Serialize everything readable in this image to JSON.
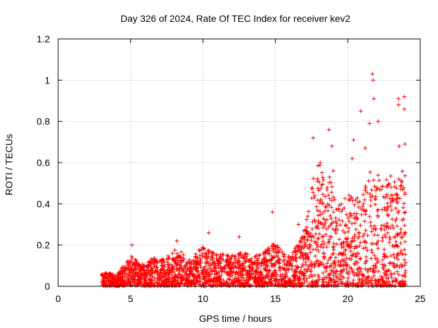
{
  "chart_data": {
    "type": "scatter",
    "title": "Day 326 of 2024, Rate Of TEC Index for receiver kev2",
    "xlabel": "GPS time / hours",
    "ylabel": "ROTI / TECUs",
    "xlim": [
      0,
      25
    ],
    "ylim": [
      0,
      1.2
    ],
    "x_ticks": [
      "0",
      "5",
      "10",
      "15",
      "20",
      "25"
    ],
    "y_ticks": [
      "0",
      "0.2",
      "0.4",
      "0.6",
      "0.8",
      "1",
      "1.2"
    ],
    "x_tick_values": [
      0,
      5,
      10,
      15,
      20,
      25
    ],
    "y_tick_values": [
      0,
      0.2,
      0.4,
      0.6,
      0.8,
      1.0,
      1.2
    ],
    "grid": true,
    "marker": "+",
    "marker_color": "#ff0000",
    "x_range_of_data": [
      3.0,
      24.0
    ],
    "envelope_hours": [
      3,
      3.5,
      4,
      4.5,
      5,
      5.5,
      6,
      6.5,
      7,
      7.5,
      8,
      8.5,
      9,
      9.5,
      10,
      10.5,
      11,
      11.5,
      12,
      12.5,
      13,
      13.5,
      14,
      14.5,
      15,
      15.5,
      16,
      16.5,
      17,
      17.5,
      18,
      18.5,
      19,
      19.5,
      20,
      20.5,
      21,
      21.5,
      22,
      22.5,
      23,
      23.5,
      24
    ],
    "envelope_roti": [
      0.06,
      0.07,
      0.05,
      0.1,
      0.16,
      0.12,
      0.1,
      0.14,
      0.13,
      0.15,
      0.18,
      0.17,
      0.13,
      0.16,
      0.2,
      0.17,
      0.15,
      0.16,
      0.15,
      0.17,
      0.16,
      0.14,
      0.17,
      0.19,
      0.22,
      0.17,
      0.15,
      0.2,
      0.28,
      0.5,
      0.62,
      0.56,
      0.5,
      0.4,
      0.45,
      0.42,
      0.5,
      0.55,
      0.6,
      0.5,
      0.55,
      0.6,
      0.55
    ],
    "highlight_points": [
      {
        "x": 5.1,
        "y": 0.2
      },
      {
        "x": 8.2,
        "y": 0.22
      },
      {
        "x": 10.4,
        "y": 0.26
      },
      {
        "x": 12.5,
        "y": 0.24
      },
      {
        "x": 14.8,
        "y": 0.36
      },
      {
        "x": 16.6,
        "y": 0.3
      },
      {
        "x": 17.6,
        "y": 0.72
      },
      {
        "x": 18.1,
        "y": 0.6
      },
      {
        "x": 18.7,
        "y": 0.76
      },
      {
        "x": 18.9,
        "y": 0.68
      },
      {
        "x": 19.0,
        "y": 0.56
      },
      {
        "x": 20.3,
        "y": 0.62
      },
      {
        "x": 20.4,
        "y": 0.71
      },
      {
        "x": 20.9,
        "y": 0.85
      },
      {
        "x": 21.2,
        "y": 0.67
      },
      {
        "x": 21.5,
        "y": 0.79
      },
      {
        "x": 21.7,
        "y": 1.03
      },
      {
        "x": 21.75,
        "y": 1.0
      },
      {
        "x": 21.8,
        "y": 0.91
      },
      {
        "x": 22.1,
        "y": 0.8
      },
      {
        "x": 23.5,
        "y": 0.91
      },
      {
        "x": 23.5,
        "y": 0.88
      },
      {
        "x": 23.55,
        "y": 0.68
      },
      {
        "x": 23.9,
        "y": 0.92
      },
      {
        "x": 23.9,
        "y": 0.86
      },
      {
        "x": 23.95,
        "y": 0.69
      }
    ]
  }
}
